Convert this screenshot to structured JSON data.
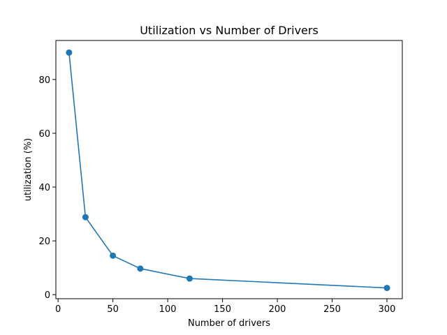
{
  "chart_data": {
    "type": "line",
    "title": "Utilization vs Number of Drivers",
    "xlabel": "Number of drivers",
    "ylabel": "utilization (%)",
    "xlim": [
      -2,
      314
    ],
    "ylim": [
      -1.5,
      94.5
    ],
    "xticks": [
      0,
      50,
      100,
      150,
      200,
      250,
      300
    ],
    "yticks": [
      0,
      20,
      40,
      60,
      80
    ],
    "grid": false,
    "series": [
      {
        "name": "utilization",
        "color": "#1f77b4",
        "marker": "circle",
        "x": [
          10,
          25,
          50,
          75,
          120,
          300
        ],
        "y": [
          90.0,
          28.8,
          14.5,
          9.7,
          6.0,
          2.5
        ]
      }
    ]
  }
}
